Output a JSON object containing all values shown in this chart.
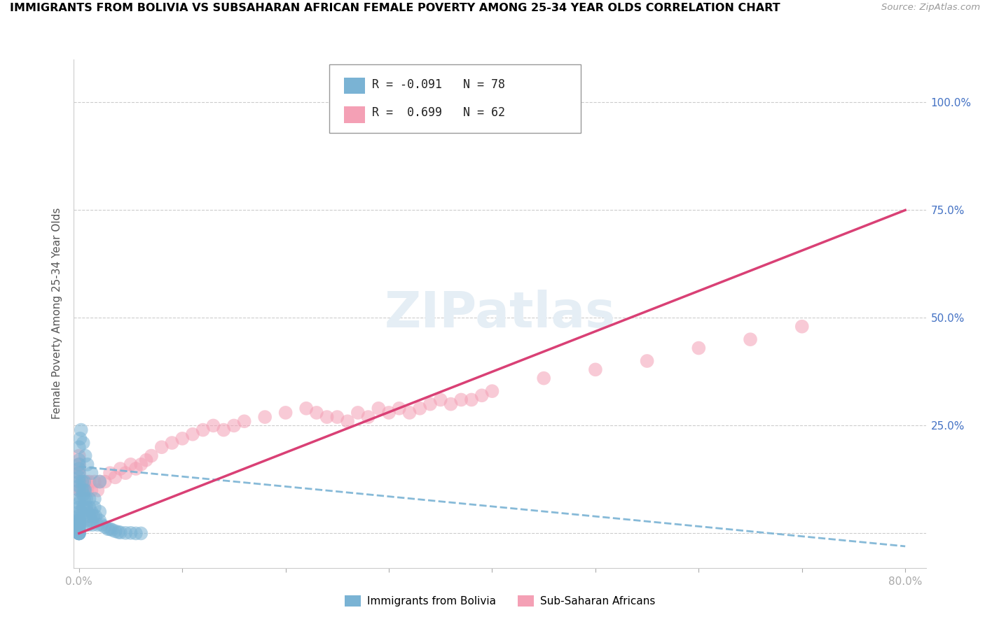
{
  "title": "IMMIGRANTS FROM BOLIVIA VS SUBSAHARAN AFRICAN FEMALE POVERTY AMONG 25-34 YEAR OLDS CORRELATION CHART",
  "source": "Source: ZipAtlas.com",
  "ylabel": "Female Poverty Among 25-34 Year Olds",
  "series1_name": "Immigrants from Bolivia",
  "series1_color": "#7ab3d4",
  "series1_R": "-0.091",
  "series1_N": "78",
  "series2_name": "Sub-Saharan Africans",
  "series2_color": "#f4a0b5",
  "series2_R": "0.699",
  "series2_N": "62",
  "bolivia_x": [
    0.0,
    0.0,
    0.0,
    0.0,
    0.0,
    0.0,
    0.0,
    0.0,
    0.0,
    0.0,
    0.0,
    0.0,
    0.0,
    0.0,
    0.0,
    0.0,
    0.0,
    0.0,
    0.0,
    0.0,
    0.0,
    0.0,
    0.0,
    0.0,
    0.0,
    0.0,
    0.0,
    0.0,
    0.0,
    0.0,
    0.002,
    0.002,
    0.003,
    0.003,
    0.004,
    0.004,
    0.005,
    0.005,
    0.005,
    0.006,
    0.007,
    0.007,
    0.008,
    0.008,
    0.009,
    0.01,
    0.01,
    0.01,
    0.012,
    0.012,
    0.013,
    0.014,
    0.015,
    0.015,
    0.016,
    0.018,
    0.02,
    0.02,
    0.022,
    0.025,
    0.028,
    0.03,
    0.032,
    0.035,
    0.038,
    0.04,
    0.045,
    0.05,
    0.055,
    0.06,
    0.0,
    0.001,
    0.002,
    0.004,
    0.006,
    0.008,
    0.012,
    0.02
  ],
  "bolivia_y": [
    0.0,
    0.0,
    0.0,
    0.0,
    0.0,
    0.01,
    0.01,
    0.015,
    0.015,
    0.02,
    0.02,
    0.02,
    0.025,
    0.025,
    0.03,
    0.03,
    0.035,
    0.04,
    0.05,
    0.06,
    0.07,
    0.08,
    0.1,
    0.11,
    0.12,
    0.13,
    0.14,
    0.15,
    0.16,
    0.17,
    0.05,
    0.08,
    0.1,
    0.12,
    0.06,
    0.09,
    0.08,
    0.1,
    0.12,
    0.1,
    0.08,
    0.06,
    0.05,
    0.03,
    0.02,
    0.04,
    0.06,
    0.08,
    0.03,
    0.05,
    0.02,
    0.04,
    0.06,
    0.08,
    0.04,
    0.02,
    0.03,
    0.05,
    0.02,
    0.015,
    0.01,
    0.01,
    0.008,
    0.005,
    0.003,
    0.002,
    0.001,
    0.001,
    0.0,
    0.0,
    0.2,
    0.22,
    0.24,
    0.21,
    0.18,
    0.16,
    0.14,
    0.12
  ],
  "africa_x": [
    0.0,
    0.0,
    0.0,
    0.0,
    0.0,
    0.0,
    0.002,
    0.003,
    0.005,
    0.007,
    0.008,
    0.01,
    0.012,
    0.015,
    0.018,
    0.02,
    0.025,
    0.03,
    0.035,
    0.04,
    0.045,
    0.05,
    0.055,
    0.06,
    0.065,
    0.07,
    0.08,
    0.09,
    0.1,
    0.11,
    0.12,
    0.13,
    0.14,
    0.15,
    0.16,
    0.18,
    0.2,
    0.22,
    0.23,
    0.24,
    0.25,
    0.26,
    0.27,
    0.28,
    0.29,
    0.3,
    0.31,
    0.32,
    0.33,
    0.34,
    0.35,
    0.36,
    0.37,
    0.38,
    0.39,
    0.4,
    0.45,
    0.5,
    0.55,
    0.6,
    0.65,
    0.7
  ],
  "africa_y": [
    0.1,
    0.12,
    0.14,
    0.15,
    0.16,
    0.18,
    0.1,
    0.12,
    0.1,
    0.12,
    0.1,
    0.12,
    0.1,
    0.12,
    0.1,
    0.12,
    0.12,
    0.14,
    0.13,
    0.15,
    0.14,
    0.16,
    0.15,
    0.16,
    0.17,
    0.18,
    0.2,
    0.21,
    0.22,
    0.23,
    0.24,
    0.25,
    0.24,
    0.25,
    0.26,
    0.27,
    0.28,
    0.29,
    0.28,
    0.27,
    0.27,
    0.26,
    0.28,
    0.27,
    0.29,
    0.28,
    0.29,
    0.28,
    0.29,
    0.3,
    0.31,
    0.3,
    0.31,
    0.31,
    0.32,
    0.33,
    0.36,
    0.38,
    0.4,
    0.43,
    0.45,
    0.48
  ],
  "bolivia_line_x": [
    0.0,
    0.8
  ],
  "bolivia_line_y": [
    0.155,
    -0.03
  ],
  "africa_line_x": [
    0.0,
    0.8
  ],
  "africa_line_y": [
    0.0,
    0.75
  ],
  "xlim": [
    -0.005,
    0.82
  ],
  "ylim": [
    -0.08,
    1.1
  ],
  "xticks": [
    0.0,
    0.1,
    0.2,
    0.3,
    0.4,
    0.5,
    0.6,
    0.7,
    0.8
  ],
  "xtick_labels": [
    "0.0%",
    "",
    "",
    "",
    "",
    "",
    "",
    "",
    "80.0%"
  ],
  "yticks": [
    0.0,
    0.25,
    0.5,
    0.75,
    1.0
  ],
  "ytick_labels_right": [
    "",
    "25.0%",
    "50.0%",
    "75.0%",
    "100.0%"
  ]
}
